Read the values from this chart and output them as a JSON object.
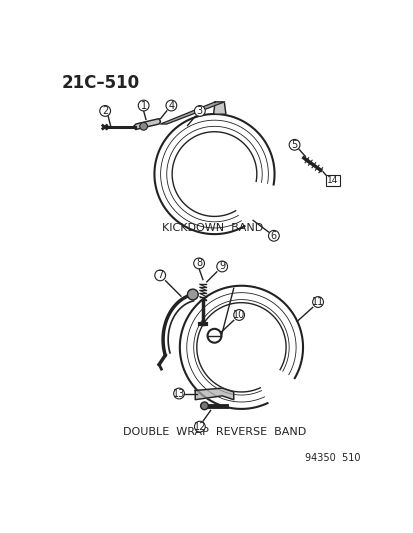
{
  "title_text": "21C–510",
  "label1": "KICKDOWN  BAND",
  "label2": "DOUBLE  WRAP  REVERSE  BAND",
  "footer": "94350  510",
  "bg_color": "#ffffff",
  "line_color": "#222222"
}
